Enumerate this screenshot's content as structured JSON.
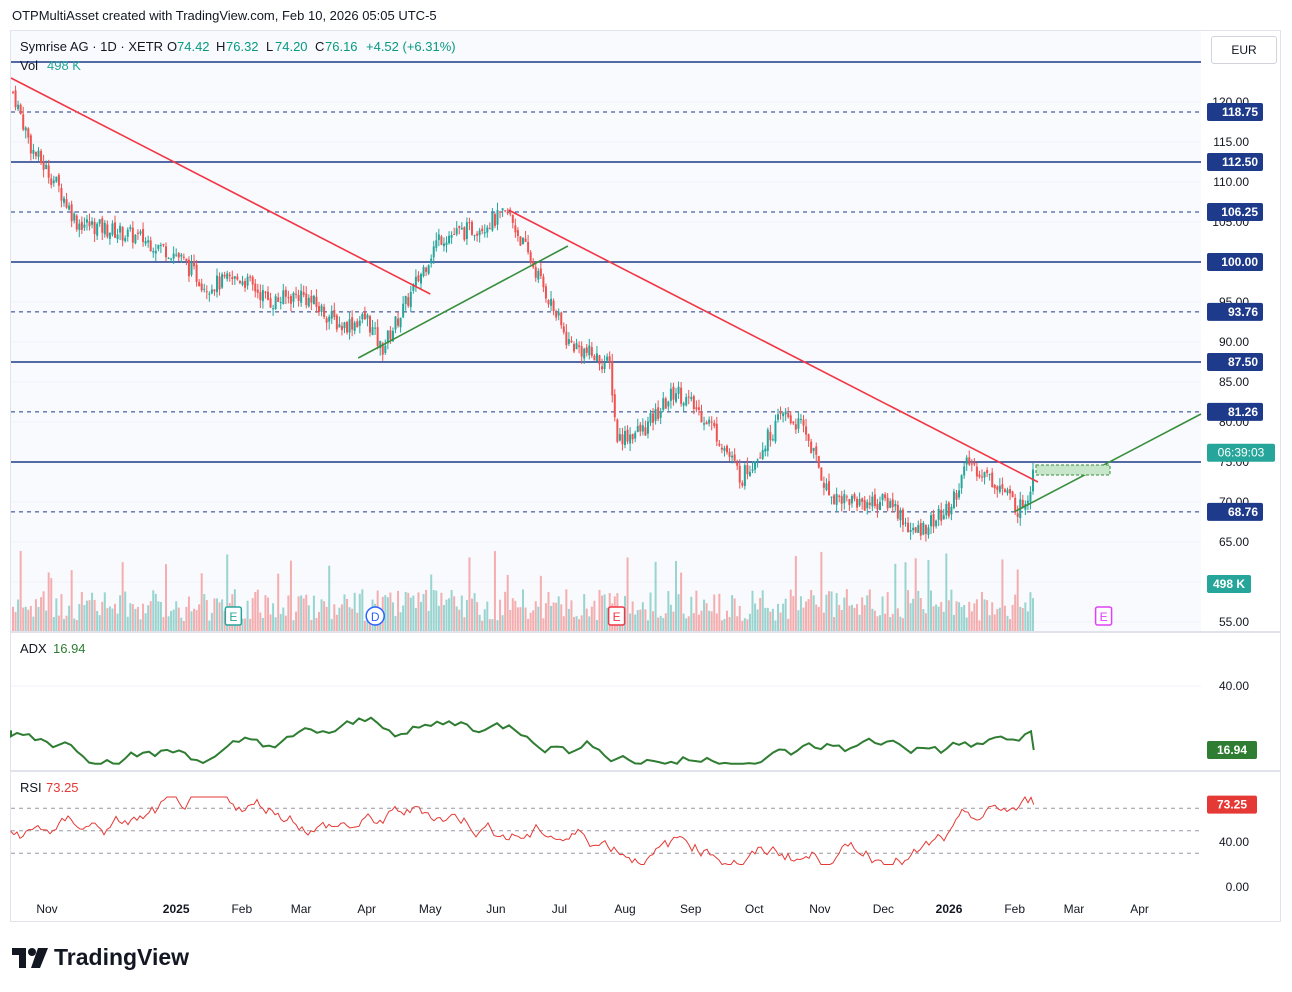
{
  "caption": "OTPMultiAsset created with TradingView.com, Feb 10, 2026 05:05 UTC-5",
  "currency": "EUR",
  "legend": {
    "symbol": "Symrise AG · 1D · XETR",
    "o_label": "O",
    "o": "74.42",
    "h_label": "H",
    "h": "76.32",
    "l_label": "L",
    "l": "74.20",
    "c_label": "C",
    "c": "76.16",
    "change": "+4.52 (+6.31%)",
    "vol_label": "Vol",
    "vol": "498 K"
  },
  "price_axis": [
    "120.00",
    "115.00",
    "110.00",
    "105.00",
    "95.00",
    "90.00",
    "85.00",
    "80.00",
    "75.00",
    "70.00",
    "65.00",
    "55.00"
  ],
  "level_labels": [
    {
      "text": "118.75",
      "color": "#1e3a8a"
    },
    {
      "text": "112.50",
      "color": "#1e3a8a"
    },
    {
      "text": "106.25",
      "color": "#1e3a8a"
    },
    {
      "text": "100.00",
      "color": "#1e3a8a"
    },
    {
      "text": "93.76",
      "color": "#1e3a8a"
    },
    {
      "text": "87.50",
      "color": "#1e3a8a"
    },
    {
      "text": "81.26",
      "color": "#1e3a8a"
    },
    {
      "text": "68.76",
      "color": "#1e3a8a"
    }
  ],
  "countdown_label": "06:39:03",
  "countdown_color": "#26a69a",
  "volume_label": "498 K",
  "volume_label_color": "#26a69a",
  "earnings_markers": [
    "E",
    "D",
    "E",
    "E"
  ],
  "adx": {
    "label": "ADX",
    "value": "16.94",
    "axis": [
      "40.00"
    ]
  },
  "rsi": {
    "label": "RSI",
    "value": "73.25",
    "axis": [
      "40.00",
      "0.00"
    ]
  },
  "x_axis": [
    "Nov",
    "2025",
    "Feb",
    "Mar",
    "Apr",
    "May",
    "Jun",
    "Jul",
    "Aug",
    "Sep",
    "Oct",
    "Nov",
    "Dec",
    "2026",
    "Feb",
    "Mar",
    "Apr"
  ],
  "brand": "TradingView",
  "colors": {
    "up": "#26a69a",
    "down": "#ef5350",
    "level": "#1e3a8a",
    "trend_down": "#f23645",
    "trend_up": "#388e3c",
    "adx": "#2e7d32",
    "rsi": "#e53935"
  },
  "chart_data": {
    "type": "candlestick",
    "title": "Symrise AG · 1D · XETR",
    "ylim": [
      55,
      125
    ],
    "horizontal_levels": [
      125.0,
      118.75,
      112.5,
      106.25,
      100.0,
      93.76,
      87.5,
      81.26,
      75.0,
      68.76
    ],
    "trendlines": [
      {
        "color": "red",
        "from": [
          "2024-10-15",
          123
        ],
        "to": [
          "2025-05-01",
          96
        ]
      },
      {
        "color": "red",
        "from": [
          "2025-06-07",
          106.5
        ],
        "to": [
          "2026-02-12",
          72.5
        ]
      },
      {
        "color": "green",
        "from": [
          "2025-03-28",
          88
        ],
        "to": [
          "2025-07-05",
          102
        ]
      },
      {
        "color": "green",
        "from": [
          "2026-02-01",
          68.8
        ],
        "to": [
          "2026-04-30",
          81
        ]
      }
    ],
    "price_path": [
      [
        "2024-10-15",
        122
      ],
      [
        "2024-10-25",
        114
      ],
      [
        "2024-11-05",
        110
      ],
      [
        "2024-11-15",
        105
      ],
      [
        "2024-12-01",
        104
      ],
      [
        "2024-12-15",
        103
      ],
      [
        "2025-01-01",
        101
      ],
      [
        "2025-01-15",
        97
      ],
      [
        "2025-02-01",
        98
      ],
      [
        "2025-02-15",
        95
      ],
      [
        "2025-03-01",
        96
      ],
      [
        "2025-03-20",
        92
      ],
      [
        "2025-04-01",
        93
      ],
      [
        "2025-04-08",
        89
      ],
      [
        "2025-04-20",
        95
      ],
      [
        "2025-05-05",
        103
      ],
      [
        "2025-05-20",
        104
      ],
      [
        "2025-06-07",
        106
      ],
      [
        "2025-06-25",
        96
      ],
      [
        "2025-07-05",
        90
      ],
      [
        "2025-07-25",
        87
      ],
      [
        "2025-07-28",
        78
      ],
      [
        "2025-08-10",
        79
      ],
      [
        "2025-08-25",
        84
      ],
      [
        "2025-09-10",
        80
      ],
      [
        "2025-09-25",
        73
      ],
      [
        "2025-10-15",
        81
      ],
      [
        "2025-10-25",
        79
      ],
      [
        "2025-11-05",
        71
      ],
      [
        "2025-11-20",
        70
      ],
      [
        "2025-12-05",
        70
      ],
      [
        "2025-12-15",
        66
      ],
      [
        "2026-01-01",
        69
      ],
      [
        "2026-01-10",
        75
      ],
      [
        "2026-01-25",
        72
      ],
      [
        "2026-02-03",
        69
      ],
      [
        "2026-02-09",
        72
      ],
      [
        "2026-02-10",
        76.16
      ]
    ],
    "volume_last": 498000,
    "adx_last": 16.94,
    "rsi_last": 73.25,
    "x_range": [
      "2024-10-15",
      "2026-04-30"
    ]
  }
}
